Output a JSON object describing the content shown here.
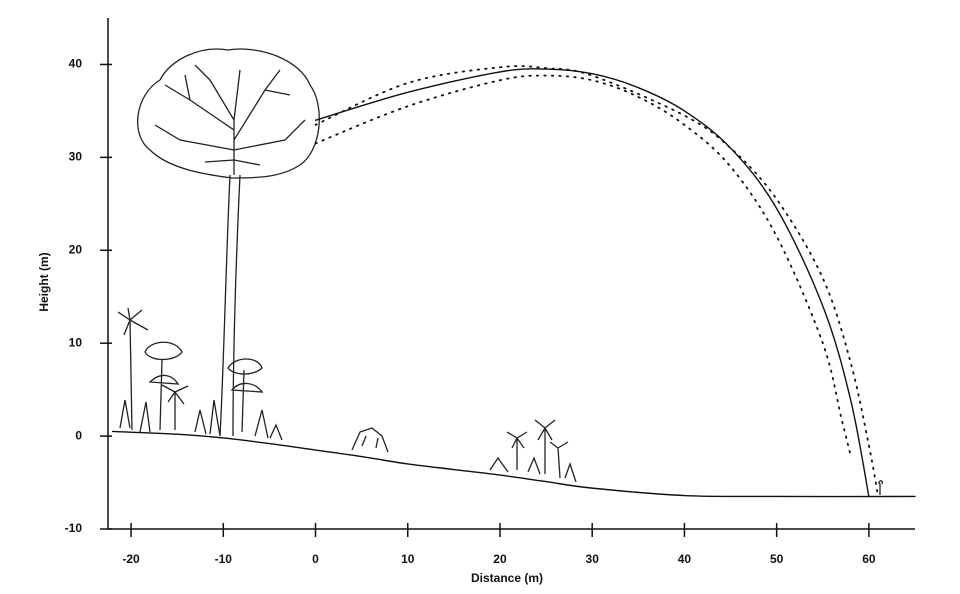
{
  "chart_data": {
    "type": "line",
    "x_label": "Distance (m)",
    "y_label": "Height (m)",
    "xlim": [
      -22.5,
      65
    ],
    "ylim": [
      -10,
      45
    ],
    "xticks": [
      -20,
      -10,
      0,
      10,
      20,
      30,
      40,
      50,
      60
    ],
    "yticks": [
      -10,
      0,
      10,
      20,
      30,
      40
    ],
    "grid": false,
    "series": [
      {
        "color": "#111111",
        "line_style": "solid",
        "x": [
          0,
          10,
          20,
          25,
          30,
          35,
          40,
          45,
          50,
          55,
          58,
          60
        ],
        "values": [
          34,
          37,
          39.2,
          39.5,
          39,
          37.5,
          35,
          31,
          24.5,
          14,
          4,
          -6.5
        ]
      },
      {
        "color": "#111111",
        "line_style": "dotted",
        "x": [
          0,
          10,
          20,
          25,
          30,
          40,
          45,
          50,
          55,
          58,
          60,
          61
        ],
        "values": [
          33.5,
          38,
          39.7,
          39.6,
          38.8,
          34.5,
          31,
          25.5,
          17,
          8,
          -1,
          -6.5
        ]
      },
      {
        "color": "#111111",
        "line_style": "dotted",
        "x": [
          0,
          10,
          20,
          25,
          30,
          35,
          40,
          45,
          50,
          55,
          57,
          58
        ],
        "values": [
          31.5,
          35.5,
          38.3,
          38.8,
          38.3,
          36.5,
          33.5,
          29,
          21.5,
          10,
          2,
          -2
        ]
      },
      {
        "color": "#111111",
        "line_style": "solid",
        "x": [
          -22,
          -15,
          -10,
          -5,
          0,
          5,
          10,
          15,
          20,
          25,
          30,
          40,
          50,
          65
        ],
        "values": [
          0.5,
          0.2,
          -0.2,
          -0.8,
          -1.5,
          -2.2,
          -3,
          -3.6,
          -4.2,
          -4.9,
          -5.6,
          -6.4,
          -6.5,
          -6.5
        ]
      }
    ]
  }
}
